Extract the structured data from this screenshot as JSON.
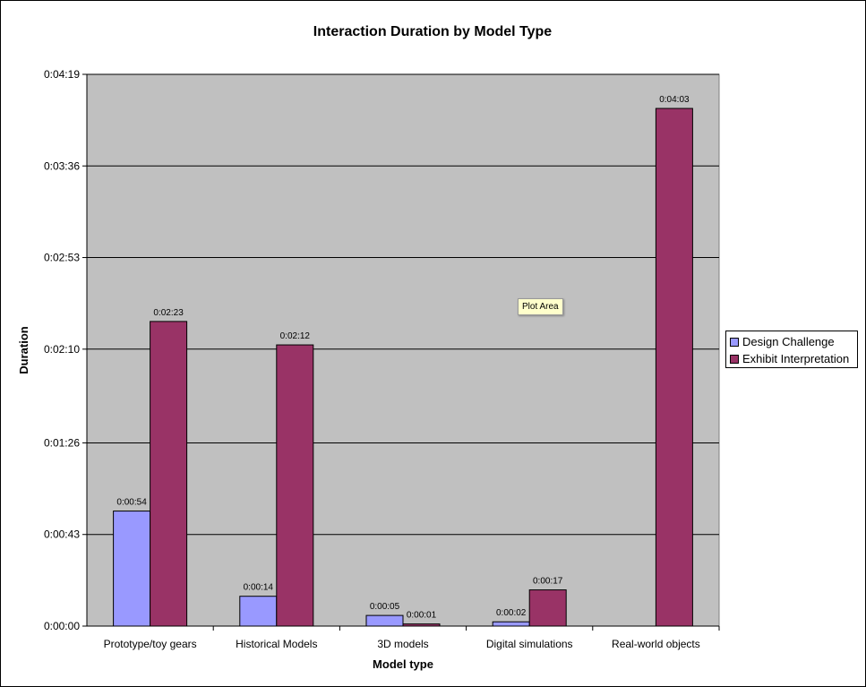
{
  "chart_data": {
    "type": "bar",
    "title": "Interaction Duration by Model Type",
    "xlabel": "Model type",
    "ylabel": "Duration",
    "categories": [
      "Prototype/toy gears",
      "Historical Models",
      "3D models",
      "Digital simulations",
      "Real-world objects"
    ],
    "series": [
      {
        "name": "Design Challenge",
        "color": "#9999ff",
        "values": [
          54,
          14,
          5,
          2,
          null
        ],
        "labels": [
          "0:00:54",
          "0:00:14",
          "0:00:05",
          "0:00:02",
          null
        ]
      },
      {
        "name": "Exhibit Interpretation",
        "color": "#993366",
        "values": [
          143,
          132,
          1,
          17,
          243
        ],
        "labels": [
          "0:02:23",
          "0:02:12",
          "0:00:01",
          "0:00:17",
          "0:04:03"
        ]
      }
    ],
    "yticks": [
      0,
      43,
      86,
      130,
      173,
      216,
      259
    ],
    "ytick_labels": [
      "0:00:00",
      "0:00:43",
      "0:01:26",
      "0:02:10",
      "0:02:53",
      "0:03:36",
      "0:04:19"
    ],
    "ylim": [
      0,
      259
    ],
    "grid": true,
    "legend_position": "right",
    "plot_background": "#c0c0c0"
  },
  "tooltip": {
    "text": "Plot Area"
  }
}
